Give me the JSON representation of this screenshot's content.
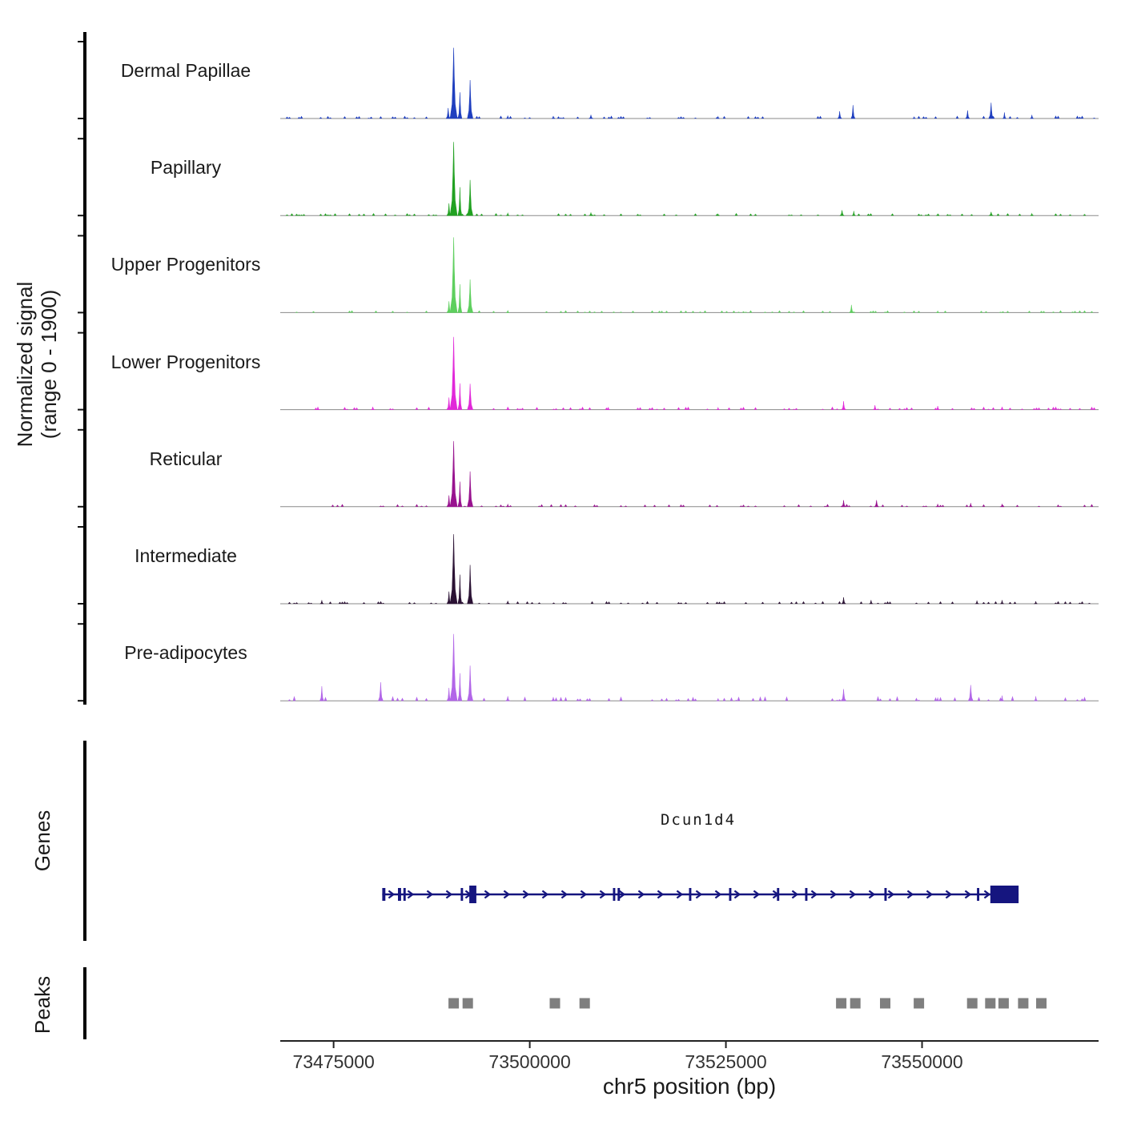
{
  "chart_data": {
    "type": "area",
    "x_axis": {
      "label": "chr5 position (bp)",
      "min": 73468200,
      "max": 73572500,
      "ticks": [
        73475000,
        73500000,
        73525000,
        73550000
      ]
    },
    "y_axis": {
      "label_line1": "Normalized signal",
      "label_line2": "(range 0 - 1900)",
      "range": [
        0,
        1900
      ]
    },
    "tracks": [
      {
        "name": "Dermal Papillae",
        "color": "#1f3fbf",
        "noise": 0.5,
        "peaks": [
          [
            73489600,
            260,
            500
          ],
          [
            73490300,
            1750,
            900
          ],
          [
            73491100,
            650,
            500
          ],
          [
            73492400,
            950,
            700
          ],
          [
            73497200,
            70,
            400
          ],
          [
            73503000,
            60,
            400
          ],
          [
            73507800,
            90,
            500
          ],
          [
            73524000,
            50,
            400
          ],
          [
            73539500,
            180,
            500
          ],
          [
            73541200,
            330,
            500
          ],
          [
            73549000,
            40,
            400
          ],
          [
            73555800,
            200,
            500
          ],
          [
            73558800,
            390,
            600
          ],
          [
            73560500,
            150,
            400
          ],
          [
            73564000,
            90,
            400
          ]
        ]
      },
      {
        "name": "Papillary",
        "color": "#21a121",
        "noise": 0.4,
        "peaks": [
          [
            73489700,
            300,
            500
          ],
          [
            73490300,
            1820,
            900
          ],
          [
            73491100,
            700,
            500
          ],
          [
            73492400,
            880,
            700
          ],
          [
            73497200,
            60,
            400
          ],
          [
            73507800,
            70,
            500
          ],
          [
            73524000,
            40,
            400
          ],
          [
            73539800,
            130,
            500
          ],
          [
            73541300,
            110,
            400
          ],
          [
            73552000,
            40,
            400
          ],
          [
            73558800,
            90,
            500
          ],
          [
            73564000,
            50,
            400
          ]
        ]
      },
      {
        "name": "Upper Progenitors",
        "color": "#5ecf5e",
        "noise": 0.35,
        "peaks": [
          [
            73489700,
            280,
            500
          ],
          [
            73490300,
            1860,
            900
          ],
          [
            73491100,
            700,
            500
          ],
          [
            73492400,
            820,
            700
          ],
          [
            73497200,
            50,
            400
          ],
          [
            73541000,
            190,
            500
          ],
          [
            73552000,
            40,
            400
          ]
        ]
      },
      {
        "name": "Lower Progenitors",
        "color": "#e128d9",
        "noise": 0.5,
        "peaks": [
          [
            73473000,
            70,
            400
          ],
          [
            73480000,
            70,
            400
          ],
          [
            73489700,
            300,
            500
          ],
          [
            73490300,
            1800,
            900
          ],
          [
            73491100,
            650,
            500
          ],
          [
            73492400,
            640,
            700
          ],
          [
            73497200,
            70,
            400
          ],
          [
            73510000,
            60,
            400
          ],
          [
            73524000,
            50,
            400
          ],
          [
            73540000,
            210,
            500
          ],
          [
            73544000,
            110,
            400
          ],
          [
            73552000,
            90,
            400
          ],
          [
            73560200,
            70,
            400
          ]
        ]
      },
      {
        "name": "Reticular",
        "color": "#98138f",
        "noise": 0.45,
        "peaks": [
          [
            73489700,
            280,
            500
          ],
          [
            73490300,
            1620,
            900
          ],
          [
            73491100,
            620,
            500
          ],
          [
            73492400,
            870,
            700
          ],
          [
            73497200,
            60,
            400
          ],
          [
            73540000,
            160,
            500
          ],
          [
            73544200,
            160,
            500
          ],
          [
            73552000,
            70,
            400
          ],
          [
            73556200,
            90,
            400
          ],
          [
            73560200,
            70,
            400
          ]
        ]
      },
      {
        "name": "Intermediate",
        "color": "#2b1234",
        "noise": 0.4,
        "peaks": [
          [
            73473500,
            90,
            400
          ],
          [
            73489700,
            300,
            500
          ],
          [
            73490300,
            1720,
            900
          ],
          [
            73491100,
            720,
            500
          ],
          [
            73492400,
            960,
            700
          ],
          [
            73497200,
            70,
            400
          ],
          [
            73540000,
            160,
            500
          ],
          [
            73543500,
            90,
            400
          ],
          [
            73557000,
            80,
            400
          ],
          [
            73560200,
            90,
            400
          ],
          [
            73564500,
            60,
            400
          ]
        ]
      },
      {
        "name": "Pre-adipocytes",
        "color": "#b266e8",
        "noise": 0.9,
        "peaks": [
          [
            73473500,
            360,
            500
          ],
          [
            73481000,
            460,
            600
          ],
          [
            73489700,
            320,
            500
          ],
          [
            73490300,
            1650,
            900
          ],
          [
            73491100,
            680,
            500
          ],
          [
            73492400,
            870,
            700
          ],
          [
            73497200,
            110,
            500
          ],
          [
            73503000,
            90,
            500
          ],
          [
            73524000,
            60,
            400
          ],
          [
            73540000,
            290,
            600
          ],
          [
            73552000,
            80,
            400
          ],
          [
            73556200,
            390,
            600
          ],
          [
            73560200,
            130,
            400
          ],
          [
            73564500,
            110,
            400
          ]
        ]
      }
    ],
    "genes": {
      "section_label": "Genes",
      "gene": {
        "name": "Dcun1d4",
        "color": "#15157f",
        "start": 73481200,
        "end": 73562300,
        "exons": [
          [
            73481200,
            73481600,
            0
          ],
          [
            73483200,
            73483600,
            0
          ],
          [
            73483900,
            73484200,
            0
          ],
          [
            73491200,
            73491500,
            0
          ],
          [
            73492300,
            73493200,
            1
          ],
          [
            73510600,
            73510900,
            0
          ],
          [
            73511200,
            73511500,
            0
          ],
          [
            73520300,
            73520600,
            0
          ],
          [
            73525400,
            73525700,
            0
          ],
          [
            73531500,
            73531800,
            0
          ],
          [
            73535100,
            73535400,
            0
          ],
          [
            73545200,
            73545500,
            0
          ],
          [
            73557000,
            73557300,
            0
          ],
          [
            73558700,
            73562300,
            1
          ]
        ]
      }
    },
    "peaks": {
      "section_label": "Peaks",
      "color": "#7f7f7f",
      "positions": [
        73490300,
        73492100,
        73503200,
        73507000,
        73539700,
        73541500,
        73545300,
        73549600,
        73556400,
        73558700,
        73560400,
        73562900,
        73565200
      ]
    }
  }
}
